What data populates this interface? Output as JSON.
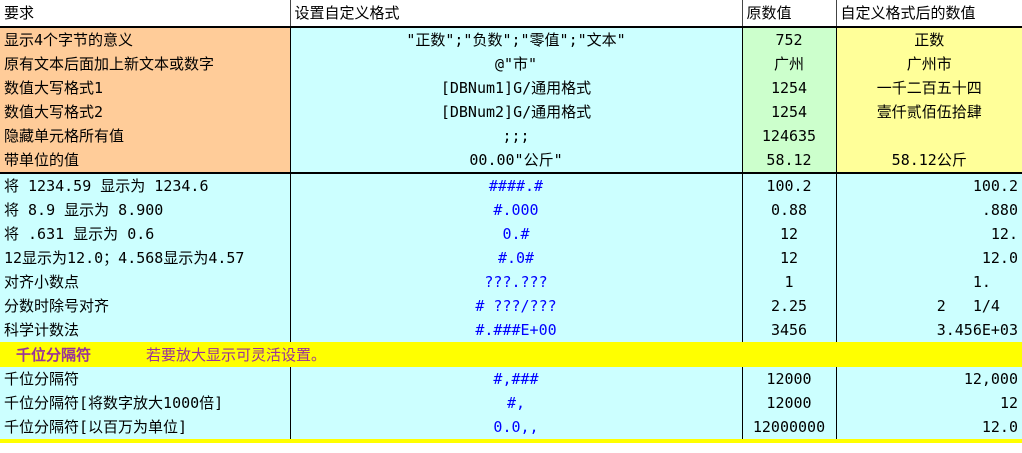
{
  "headers": [
    "要求",
    "设置自定义格式",
    "原数值",
    "自定义格式后的数值"
  ],
  "block1": [
    {
      "req": "显示4个字节的意义",
      "fmt": "\"正数\";\"负数\";\"零值\";\"文本\"",
      "orig": "752",
      "result": "正数"
    },
    {
      "req": "原有文本后面加上新文本或数字",
      "fmt": "@\"市\"",
      "orig": "广州",
      "result": "广州市"
    },
    {
      "req": "数值大写格式1",
      "fmt": "[DBNum1]G/通用格式",
      "orig": "1254",
      "result": "一千二百五十四"
    },
    {
      "req": "数值大写格式2",
      "fmt": "[DBNum2]G/通用格式",
      "orig": "1254",
      "result": "壹仟贰佰伍拾肆"
    },
    {
      "req": "隐藏单元格所有值",
      "fmt": ";;;",
      "orig": "124635",
      "result": ""
    },
    {
      "req": "带单位的值",
      "fmt": "00.00\"公斤\"",
      "orig": "58.12",
      "result": "58.12公斤"
    }
  ],
  "block2": [
    {
      "req": "将 1234.59 显示为 1234.6",
      "fmt": "####.#",
      "orig": "100.2",
      "result": "100.2"
    },
    {
      "req": "将 8.9 显示为 8.900",
      "fmt": "#.000",
      "orig": "0.88",
      "result": ".880"
    },
    {
      "req": "将 .631 显示为 0.6",
      "fmt": "0.#",
      "orig": "12",
      "result": "12."
    },
    {
      "req": "12显示为12.0；4.568显示为4.57",
      "fmt": "#.0#",
      "orig": "12",
      "result": "12.0"
    },
    {
      "req": "对齐小数点",
      "fmt": "???.???",
      "orig": "1",
      "result": "1.   "
    },
    {
      "req": "分数时除号对齐",
      "fmt": "# ???/???",
      "orig": "2.25",
      "result": "2   1/4  "
    },
    {
      "req": "科学计数法",
      "fmt": "#.###E+00",
      "orig": "3456",
      "result": "3.456E+03"
    }
  ],
  "band": {
    "title": "千位分隔符",
    "note": "若要放大显示可灵活设置。"
  },
  "block3": [
    {
      "req": "千位分隔符",
      "fmt": "#,###",
      "orig": "12000",
      "result": "12,000"
    },
    {
      "req": "千位分隔符[将数字放大1000倍]",
      "fmt": "#,",
      "orig": "12000",
      "result": "12"
    },
    {
      "req": "千位分隔符[以百万为单位]",
      "fmt": "0.0,,",
      "orig": "12000000",
      "result": "12.0"
    }
  ],
  "colors": {
    "orange": "#FFCC99",
    "cyan": "#CCFFFF",
    "green": "#CCFFCC",
    "light_yellow": "#FFFF99",
    "band_yellow": "#FFFF00",
    "band_text": "#993399",
    "format_blue": "#0000FF"
  }
}
